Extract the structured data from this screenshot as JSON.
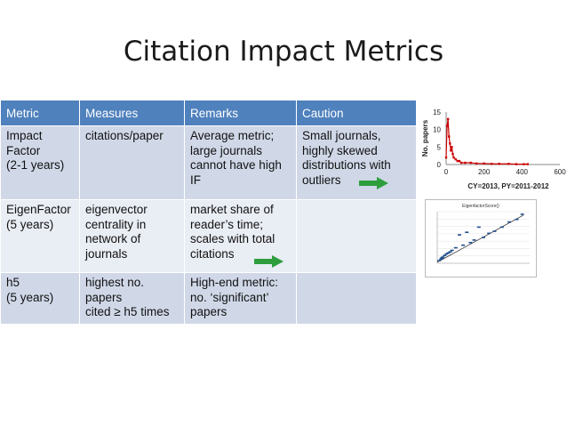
{
  "slide": {
    "title": "Citation Impact Metrics"
  },
  "table": {
    "headers": [
      "Metric",
      "Measures",
      "Remarks",
      "Caution"
    ],
    "rows": [
      {
        "metric": [
          "Impact",
          "Factor",
          "(2-1 years)"
        ],
        "measures": [
          "citations/paper"
        ],
        "remarks": [
          "Average metric;",
          "large journals",
          "cannot have high",
          "IF"
        ],
        "caution": [
          "Small journals,",
          "highly skewed",
          "distributions with",
          "outliers"
        ]
      },
      {
        "metric": [
          "EigenFactor",
          "(5 years)"
        ],
        "measures": [
          "eigenvector",
          "centrality in",
          "network of",
          "journals"
        ],
        "remarks": [
          "market share of",
          "reader’s time;",
          "scales with total",
          "citations"
        ],
        "caution": []
      },
      {
        "metric": [
          "h5",
          "(5 years)"
        ],
        "measures": [
          "highest no.",
          "papers",
          "cited ≥ h5 times"
        ],
        "remarks": [
          "High-end metric:",
          "no. ‘significant’",
          "papers"
        ],
        "caution": []
      }
    ]
  },
  "arrow_color": "#2e9e3c",
  "chart_data": [
    {
      "type": "line",
      "title": "",
      "xlabel": "CY=2013, PY=2011-2012",
      "ylabel": "No. papers",
      "xlim": [
        0,
        600
      ],
      "ylim": [
        0,
        15
      ],
      "x_ticks": [
        "0",
        "200",
        "400",
        "600"
      ],
      "y_ticks": [
        "0",
        "5",
        "10",
        "15"
      ],
      "color": "#cc0000",
      "series": [
        {
          "x": [
            0,
            5,
            10,
            15,
            20,
            25,
            30,
            35,
            40,
            50,
            60,
            70,
            80,
            100,
            130,
            160,
            200,
            240,
            280,
            330,
            370,
            410,
            430
          ],
          "y": [
            2,
            11,
            13,
            8,
            6,
            4,
            5,
            3,
            2,
            1.5,
            1,
            1,
            0.5,
            0.5,
            0.5,
            0.3,
            0.3,
            0.2,
            0.2,
            0.2,
            0.1,
            0.1,
            0.1
          ]
        }
      ]
    },
    {
      "type": "scatter",
      "title": "EigenfactorScore()",
      "xlabel": "",
      "ylabel": "",
      "color": "#1f4e8c",
      "series": [
        {
          "x": [
            0.02,
            0.04,
            0.05,
            0.06,
            0.08,
            0.1,
            0.12,
            0.14,
            0.16,
            0.2,
            0.24,
            0.28,
            0.32,
            0.36,
            0.4,
            0.45,
            0.5,
            0.56,
            0.62,
            0.7,
            0.78,
            0.86,
            0.92
          ],
          "y": [
            0.05,
            0.08,
            0.1,
            0.12,
            0.15,
            0.18,
            0.2,
            0.22,
            0.25,
            0.3,
            0.55,
            0.35,
            0.6,
            0.4,
            0.45,
            0.7,
            0.5,
            0.58,
            0.62,
            0.7,
            0.8,
            0.85,
            0.95
          ]
        }
      ]
    }
  ]
}
